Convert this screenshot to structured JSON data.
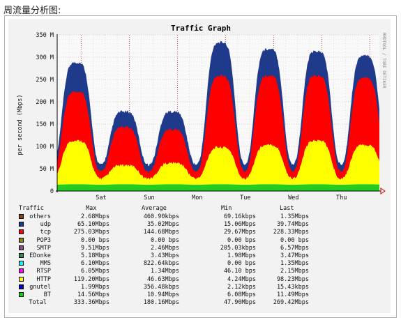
{
  "caption": "周流量分析图:",
  "chart_data": {
    "type": "area",
    "title": "Traffic Graph",
    "watermark": "RRDTOOL / TOBI OETIKER",
    "ylabel": "per second (Mbps)",
    "ylim": [
      0,
      350
    ],
    "yticks": [
      "0",
      "50 M",
      "100 M",
      "150 M",
      "200 M",
      "250 M",
      "300 M",
      "350 M"
    ],
    "x_day_labels": [
      "Sat",
      "Sun",
      "Mon",
      "Tue",
      "Wed",
      "Thu"
    ],
    "grid": true,
    "colors": {
      "BT": "#22cc22",
      "HTTP": "#ffff00",
      "tcp": "#ff0000",
      "udp": "#1f3a8a",
      "plot_bg": "#f9f9f9",
      "grid": "#ccaaaa",
      "day_grid": "#aa0000"
    },
    "series_peaks_Mbps": [
      {
        "name": "BT",
        "daily_peak": [
          15,
          15,
          15,
          15,
          15,
          15,
          15
        ]
      },
      {
        "name": "HTTP",
        "daily_peak": [
          110,
          55,
          60,
          95,
          100,
          110,
          100
        ]
      },
      {
        "name": "tcp",
        "daily_peak": [
          220,
          140,
          135,
          255,
          255,
          255,
          250
        ]
      },
      {
        "name": "udp",
        "daily_peak": [
          285,
          175,
          175,
          330,
          315,
          310,
          300
        ]
      }
    ]
  },
  "legend": {
    "headers": {
      "traffic": "Traffic",
      "max": "Max",
      "avg": "Average",
      "min": "Min",
      "last": "Last"
    },
    "rows": [
      {
        "name": "others",
        "color": "#8b4513",
        "max": "2.68Mbps",
        "avg": "460.90kbps",
        "min": "69.16kbps",
        "last": "1.35Mbps"
      },
      {
        "name": "udp",
        "color": "#1f3a8a",
        "max": "65.10Mbps",
        "avg": "35.02Mbps",
        "min": "15.06Mbps",
        "last": "39.74Mbps"
      },
      {
        "name": "tcp",
        "color": "#ff0000",
        "max": "275.03Mbps",
        "avg": "144.68Mbps",
        "min": "29.67Mbps",
        "last": "228.33Mbps"
      },
      {
        "name": "POP3",
        "color": "#8b8b00",
        "max": "0.00 bps",
        "avg": "0.00 bps",
        "min": "0.00 bps",
        "last": "0.00 bps"
      },
      {
        "name": "SMTP",
        "color": "#8b4a8b",
        "max": "9.51Mbps",
        "avg": "2.46Mbps",
        "min": "205.03kbps",
        "last": "6.57Mbps"
      },
      {
        "name": "EDonke",
        "color": "#2e8b57",
        "max": "5.18Mbps",
        "avg": "3.43Mbps",
        "min": "1.98Mbps",
        "last": "3.47Mbps"
      },
      {
        "name": "MMS",
        "color": "#00ffff",
        "max": "6.10Mbps",
        "avg": "822.64kbps",
        "min": "0.00 bps",
        "last": "1.35Mbps"
      },
      {
        "name": "RTSP",
        "color": "#ff00ff",
        "max": "6.05Mbps",
        "avg": "1.34Mbps",
        "min": "46.10 bps",
        "last": "2.15Mbps"
      },
      {
        "name": "HTTP",
        "color": "#ffff00",
        "max": "119.20Mbps",
        "avg": "46.63Mbps",
        "min": "4.24Mbps",
        "last": "98.23Mbps"
      },
      {
        "name": "gnutel",
        "color": "#0000cc",
        "max": "1.99Mbps",
        "avg": "356.48kbps",
        "min": "2.12kbps",
        "last": "15.43kbps"
      },
      {
        "name": "BT",
        "color": "#00dd00",
        "max": "14.56Mbps",
        "avg": "10.94Mbps",
        "min": "6.08Mbps",
        "last": "11.49Mbps"
      },
      {
        "name": "Total",
        "color": "",
        "max": "333.36Mbps",
        "avg": "180.16Mbps",
        "min": "47.90Mbps",
        "last": "269.42Mbps"
      }
    ]
  }
}
